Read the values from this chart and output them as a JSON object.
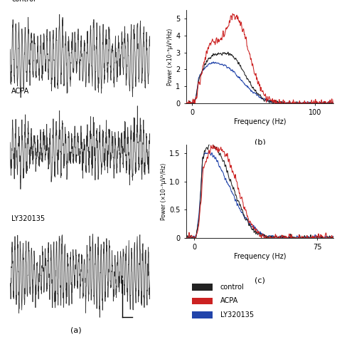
{
  "fig_width": 4.74,
  "fig_height": 4.8,
  "dpi": 100,
  "bg_color": "#ffffff",
  "label_a": "(a)",
  "label_b": "(b)",
  "label_c": "(c)",
  "trace_labels": [
    "control",
    "ACPA",
    "LY320135"
  ],
  "trace_colors": [
    "#222222",
    "#cc2222",
    "#2244aa"
  ],
  "legend_colors": [
    "#222222",
    "#cc2222",
    "#2244aa"
  ],
  "panel_b": {
    "xlabel": "Frequency (Hz)",
    "ylabel": "Power (×10⁻⁹μV²/Hz)",
    "xlim": [
      -5,
      115
    ],
    "ylim": [
      0,
      5.5
    ],
    "yticks": [
      0,
      1,
      2,
      3,
      4,
      5
    ],
    "xticks": [
      0,
      100
    ]
  },
  "panel_c": {
    "xlabel": "Frequency (Hz)",
    "ylabel": "Power (×10⁻⁹μV²/Hz)",
    "xlim": [
      -5,
      85
    ],
    "ylim": [
      0,
      1.65
    ],
    "yticks": [
      0,
      0.5,
      1.0,
      1.5
    ],
    "xticks": [
      0,
      75
    ]
  }
}
